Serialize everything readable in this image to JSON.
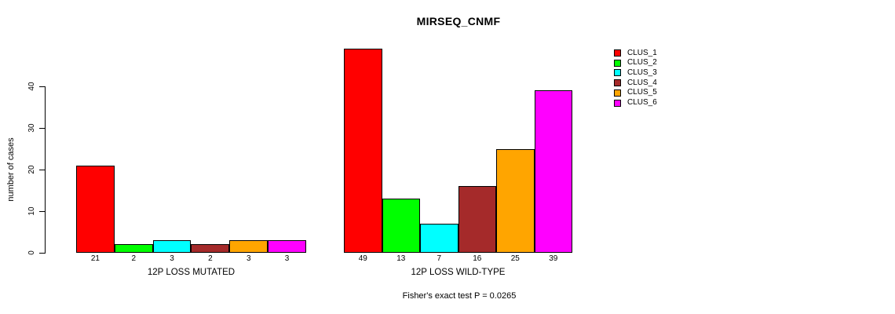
{
  "page": {
    "background": "#ffffff",
    "text_color": "#000000"
  },
  "chart_data": {
    "type": "bar",
    "title": "MIRSEQ_CNMF",
    "ylabel": "number of cases",
    "ylim": [
      0,
      40
    ],
    "yticks": [
      0,
      10,
      20,
      30,
      40
    ],
    "grid": false,
    "legend_position": "right",
    "categories": [
      "CLUS_1",
      "CLUS_2",
      "CLUS_3",
      "CLUS_4",
      "CLUS_5",
      "CLUS_6"
    ],
    "colors": [
      "#FF0000",
      "#00FF00",
      "#00FFFF",
      "#A52A2A",
      "#FFA500",
      "#FF00FF"
    ],
    "groups": [
      {
        "xlabel": "12P LOSS MUTATED",
        "values": [
          21,
          2,
          3,
          2,
          3,
          3
        ]
      },
      {
        "xlabel": "12P LOSS WILD-TYPE",
        "values": [
          49,
          13,
          7,
          16,
          25,
          39
        ]
      }
    ],
    "annotation": "Fisher's exact test P = 0.0265"
  }
}
